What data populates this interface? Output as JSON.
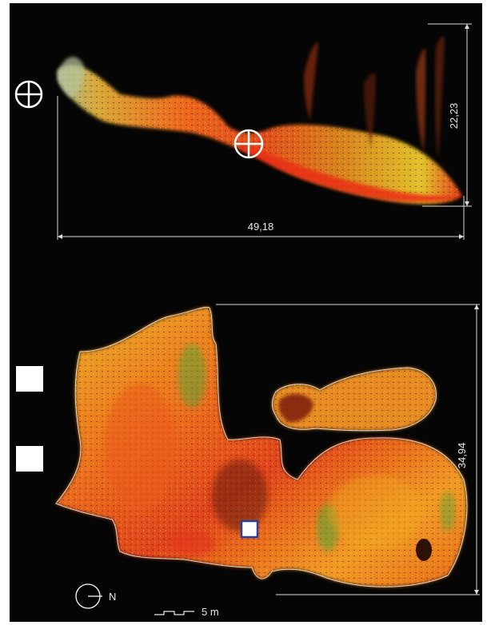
{
  "profile_view": {
    "height_dimension": "22,23",
    "length_dimension": "49,18"
  },
  "plan_view": {
    "height_dimension": "34,94",
    "north_label": "N",
    "scale_label": "5 m"
  },
  "colors": {
    "background": "#050505",
    "frame": "#ffffff",
    "dimension_lines": "#dcdcdc",
    "points_red": "#e0301c",
    "points_orange": "#f07a1c",
    "points_yellow": "#e8c21e",
    "points_green": "#5fb53a",
    "points_dark": "#5a1408",
    "marker_outline": "#2b3f9e"
  }
}
